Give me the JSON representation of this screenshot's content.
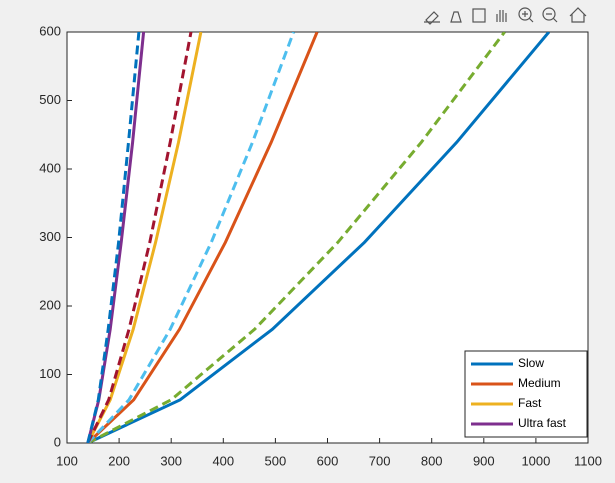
{
  "chart_data": {
    "type": "line",
    "xlim": [
      100,
      1100
    ],
    "xticks": [
      100,
      200,
      300,
      400,
      500,
      600,
      700,
      800,
      900,
      1000,
      1100
    ],
    "ylim": [
      0,
      600
    ],
    "yticks": [
      0,
      100,
      200,
      300,
      400,
      500,
      600
    ],
    "legend": "lower right",
    "series": [
      {
        "name": "Slow",
        "color": "#0072bd",
        "line_style": "solid",
        "x": [
          140,
          317,
          494,
          671,
          848,
          1025
        ],
        "values": [
          0,
          63,
          166,
          293,
          439,
          600
        ]
      },
      {
        "color": "#77ac30",
        "line_style": "dashed",
        "x": [
          140,
          300,
          460,
          620,
          780,
          940
        ],
        "values": [
          0,
          63,
          166,
          293,
          439,
          600
        ]
      },
      {
        "name": "Medium",
        "color": "#d95319",
        "line_style": "solid",
        "x": [
          140,
          228,
          316,
          404,
          492,
          580
        ],
        "values": [
          0,
          63,
          166,
          293,
          439,
          600
        ]
      },
      {
        "color": "#4dbeee",
        "line_style": "dashed",
        "x": [
          140,
          219,
          298,
          377,
          456,
          535
        ],
        "values": [
          0,
          63,
          166,
          293,
          439,
          600
        ]
      },
      {
        "name": "Fast",
        "color": "#edb120",
        "line_style": "solid",
        "x": [
          140,
          183,
          227,
          270,
          314,
          357
        ],
        "values": [
          0,
          63,
          166,
          293,
          439,
          600
        ]
      },
      {
        "color": "#a2142f",
        "line_style": "dashed",
        "x": [
          140,
          180,
          219,
          259,
          298,
          338
        ],
        "values": [
          0,
          63,
          166,
          293,
          439,
          600
        ]
      },
      {
        "name": "Ultra fast",
        "color": "#7e2f8e",
        "line_style": "solid",
        "x": [
          140,
          161,
          183,
          204,
          226,
          247
        ],
        "values": [
          0,
          63,
          166,
          293,
          439,
          600
        ]
      },
      {
        "color": "#0072bd",
        "line_style": "dashed",
        "x": [
          140,
          160,
          179,
          199,
          218,
          238
        ],
        "values": [
          0,
          63,
          166,
          293,
          439,
          600
        ]
      }
    ]
  }
}
